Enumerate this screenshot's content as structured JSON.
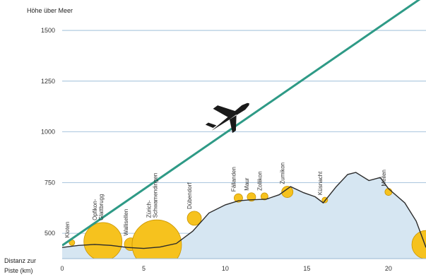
{
  "y_axis_title": "Höhe über Meer",
  "x_axis_title_line1": "Distanz zur",
  "x_axis_title_line2": "Piste (km)",
  "y_ticks": [
    "500",
    "750",
    "1000",
    "1250",
    "1500"
  ],
  "x_ticks": [
    "0",
    "5",
    "10",
    "15",
    "20"
  ],
  "colors": {
    "terrain_fill": "#d6e6f2",
    "terrain_line": "#2b2b2b",
    "glide_path": "#2e9a86",
    "circle_fill": "#f6c21e",
    "circle_stroke": "#c99400",
    "grid": "#8fb4d3",
    "plane": "#1a1a1a"
  },
  "chart_data": {
    "type": "line",
    "y_range": [
      375,
      1650
    ],
    "x_range": [
      0,
      22.3
    ],
    "terrain_profile": [
      [
        0,
        430
      ],
      [
        1,
        440
      ],
      [
        2,
        445
      ],
      [
        3,
        440
      ],
      [
        4,
        430
      ],
      [
        5,
        425
      ],
      [
        6,
        432
      ],
      [
        7,
        450
      ],
      [
        8,
        510
      ],
      [
        9,
        600
      ],
      [
        10,
        640
      ],
      [
        10.8,
        660
      ],
      [
        11.5,
        665
      ],
      [
        12.5,
        668
      ],
      [
        13.3,
        690
      ],
      [
        14,
        730
      ],
      [
        14.8,
        700
      ],
      [
        15.5,
        680
      ],
      [
        16,
        650
      ],
      [
        16.8,
        730
      ],
      [
        17.5,
        790
      ],
      [
        18,
        800
      ],
      [
        18.8,
        760
      ],
      [
        19.5,
        775
      ],
      [
        20,
        720
      ],
      [
        21,
        650
      ],
      [
        21.7,
        560
      ],
      [
        22.3,
        430
      ]
    ],
    "glide_path": {
      "start": [
        0,
        440
      ],
      "end": [
        22.3,
        1675
      ]
    },
    "places": [
      {
        "name": "Kloten",
        "x": 0.6,
        "elev": 440,
        "r": 4
      },
      {
        "name": "Opfikon-\nGlattbrugg",
        "x": 2.5,
        "elev": 445,
        "r": 27
      },
      {
        "name": "Wallisellen",
        "x": 4.2,
        "elev": 432,
        "r": 9
      },
      {
        "name": "Zürich-\nSchwamendingen",
        "x": 5.8,
        "elev": 430,
        "r": 35
      },
      {
        "name": "Dübendorf",
        "x": 8.1,
        "elev": 560,
        "r": 10
      },
      {
        "name": "Fällanden",
        "x": 10.8,
        "elev": 660,
        "r": 6
      },
      {
        "name": "Maur",
        "x": 11.6,
        "elev": 665,
        "r": 6
      },
      {
        "name": "Zollikon",
        "x": 12.4,
        "elev": 668,
        "r": 5
      },
      {
        "name": "Zumikon",
        "x": 13.8,
        "elev": 690,
        "r": 8
      },
      {
        "name": "Küsnacht",
        "x": 16.1,
        "elev": 650,
        "r": 4
      },
      {
        "name": "Meilen",
        "x": 20.0,
        "elev": 690,
        "r": 5
      },
      {
        "name": "",
        "x": 22.3,
        "elev": 430,
        "r": 20
      }
    ]
  }
}
